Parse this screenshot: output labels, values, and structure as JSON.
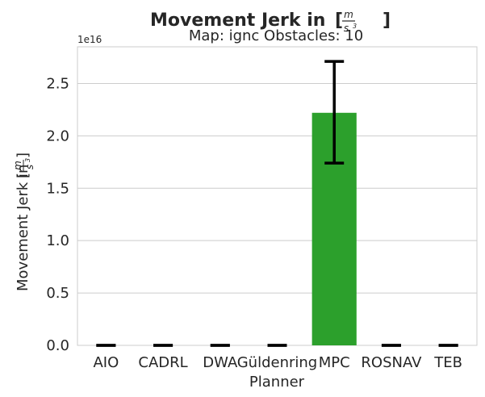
{
  "chart_data": {
    "type": "bar",
    "title": "Movement Jerk in",
    "title_unit": {
      "num": "m",
      "den": "s",
      "den_exp": "3"
    },
    "subtitle": "Map: ignc Obstacles: 10",
    "xlabel": "Planner",
    "ylabel": "Movement Jerk in",
    "scale_offset": "1e16",
    "categories": [
      "AIO",
      "CADRL",
      "DWA",
      "Güldenring",
      "MPC",
      "ROSNAV",
      "TEB"
    ],
    "values": [
      0,
      0,
      0,
      0,
      2.22,
      0,
      0
    ],
    "error_low": [
      0,
      0,
      0,
      0,
      1.74,
      0,
      0
    ],
    "error_high": [
      0,
      0,
      0,
      0,
      2.71,
      0,
      0
    ],
    "ylim": [
      0,
      2.85
    ],
    "yticks": [
      0.0,
      0.5,
      1.0,
      1.5,
      2.0,
      2.5
    ],
    "ytick_labels": [
      "0.0",
      "0.5",
      "1.0",
      "1.5",
      "2.0",
      "2.5"
    ],
    "grid": true,
    "bar_color": "#2ca02c",
    "errorbar_color": "#000000"
  }
}
